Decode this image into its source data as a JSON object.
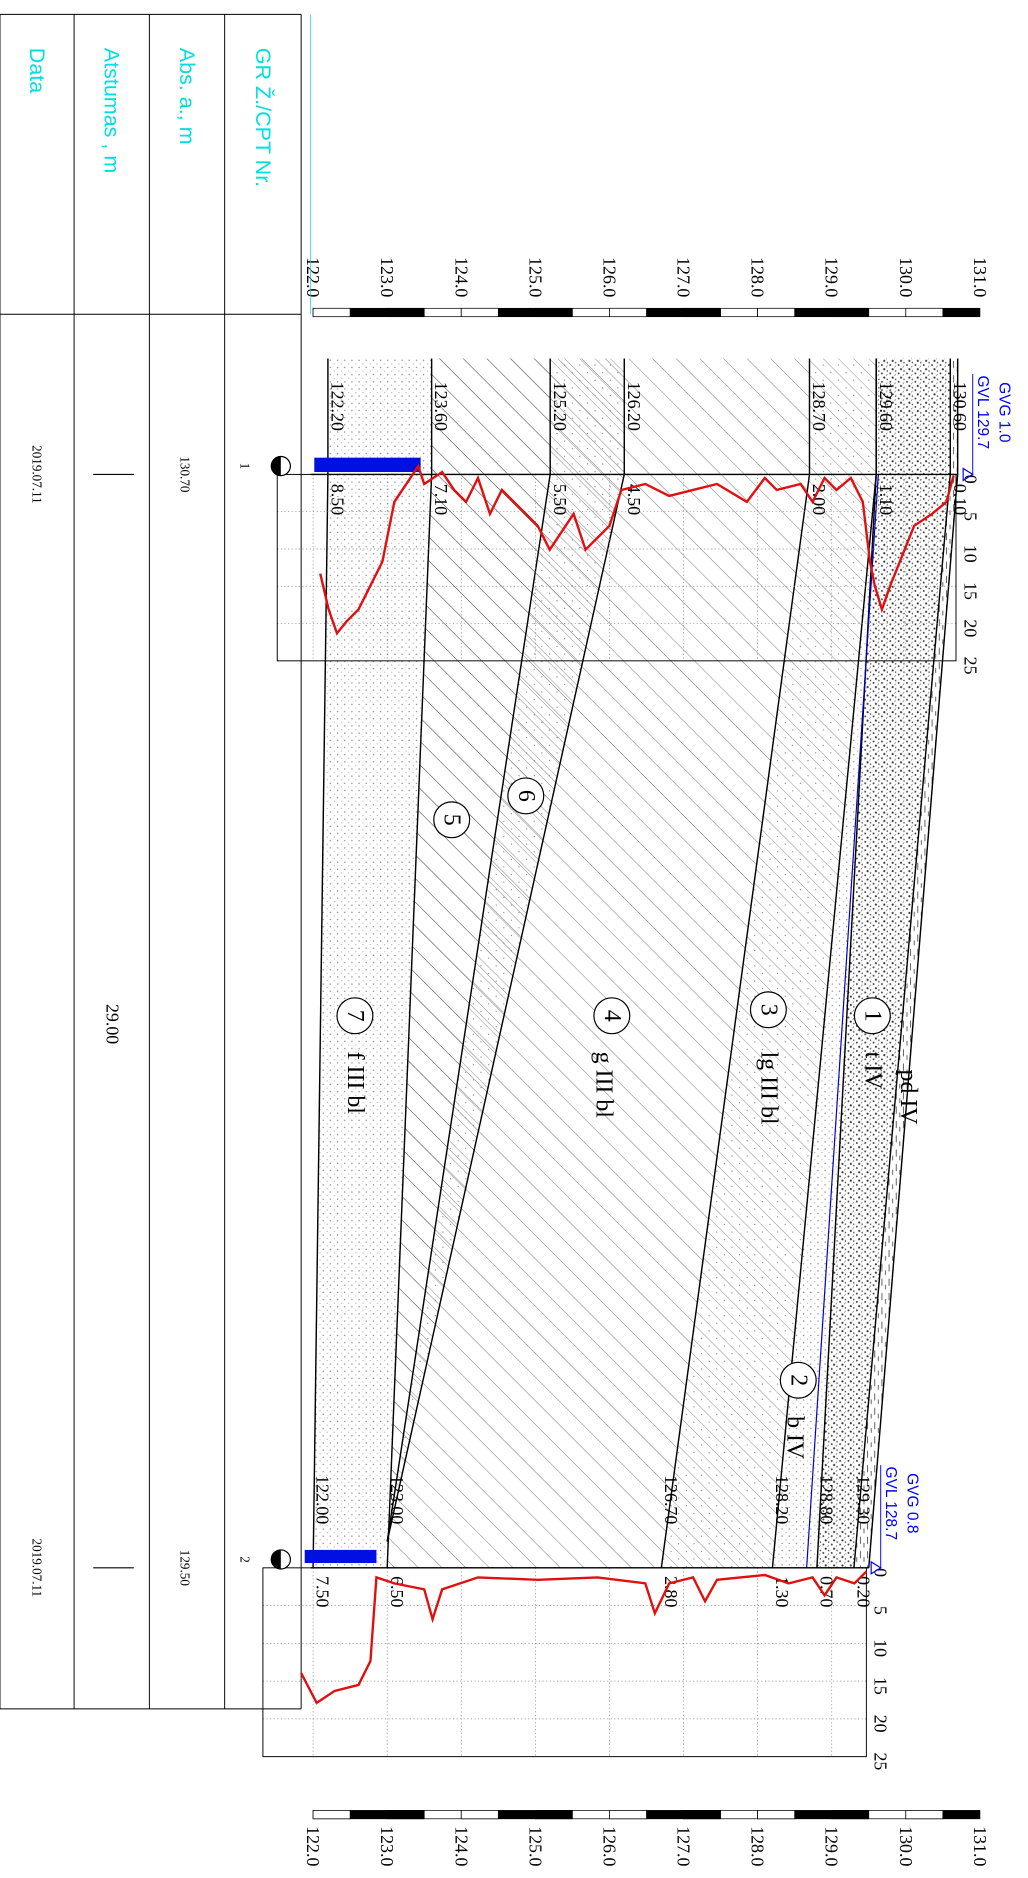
{
  "table": {
    "headers": [
      "GR Ž./CPT Nr.",
      "Abs. a., m",
      "Atstumas , m",
      "Data"
    ],
    "boreholes": [
      {
        "id": "1",
        "abs": "130.70",
        "date": "2019.07.11"
      },
      {
        "id": "2",
        "abs": "129.50",
        "date": "2019.07.11"
      }
    ],
    "distance": "29.00"
  },
  "scale": {
    "ticks": [
      "122.0",
      "123.0",
      "124.0",
      "125.0",
      "126.0",
      "127.0",
      "128.0",
      "129.0",
      "130.0",
      "131.0"
    ]
  },
  "boreholes": [
    {
      "gvg": "GVG 1.0",
      "gvl": "GVL 129.7",
      "elevations": [
        "130.60",
        "129.60",
        "128.70",
        "126.20",
        "125.20",
        "123.60",
        "122.20"
      ],
      "depths": [
        "0.10",
        "1.10",
        "2.00",
        "4.50",
        "5.50",
        "7.10",
        "8.50"
      ],
      "cpt_ticks": [
        "0",
        "5",
        "10",
        "15",
        "20",
        "25"
      ]
    },
    {
      "gvg": "GVG 0.8",
      "gvl": "GVL 128.7",
      "elevations": [
        "129.30",
        "128.80",
        "128.20",
        "126.70",
        "123.00",
        "122.00"
      ],
      "depths": [
        "0.20",
        "0.70",
        "1.30",
        "2.80",
        "6.50",
        "7.50"
      ],
      "cpt_ticks": [
        "0",
        "5",
        "10",
        "15",
        "20",
        "25"
      ]
    }
  ],
  "layers": [
    {
      "index": "pd IV"
    },
    {
      "number": "1",
      "index": "t IV"
    },
    {
      "number": "2",
      "index": "b IV"
    },
    {
      "number": "3",
      "index": "lg III bl"
    },
    {
      "number": "4",
      "index": "g III bl"
    },
    {
      "number": "5"
    },
    {
      "number": "6"
    },
    {
      "number": "7",
      "index": "f III bl"
    }
  ]
}
